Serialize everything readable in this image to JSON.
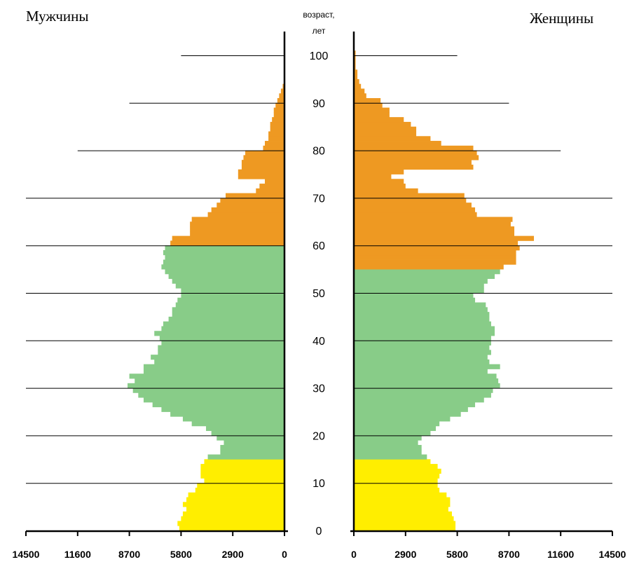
{
  "chart_data": {
    "type": "bar",
    "titles": {
      "male": "Мужчины",
      "female": "Женщины"
    },
    "axis_title_line1": "возраст,",
    "axis_title_line2": "лет",
    "x_ticks_male": [
      "14500",
      "11600",
      "8700",
      "5800",
      "2900",
      "0"
    ],
    "x_ticks_female": [
      "0",
      "2900",
      "5800",
      "8700",
      "11600",
      "14500"
    ],
    "xlim": [
      0,
      14500
    ],
    "ylim": [
      0,
      101
    ],
    "age_ticks": [
      "0",
      "10",
      "20",
      "30",
      "40",
      "50",
      "60",
      "70",
      "80",
      "90",
      "100"
    ],
    "age_groups": [
      {
        "name": "0-14",
        "ages": [
          0,
          14
        ],
        "color": "#FFEE00"
      },
      {
        "name": "15-59 (male) / 15-54 (female)",
        "color": "#88CC88"
      },
      {
        "name": "60+ (male) / 55+ (female)",
        "color": "#EE9922"
      }
    ],
    "ages": [
      0,
      1,
      2,
      3,
      4,
      5,
      6,
      7,
      8,
      9,
      10,
      11,
      12,
      13,
      14,
      15,
      16,
      17,
      18,
      19,
      20,
      21,
      22,
      23,
      24,
      25,
      26,
      27,
      28,
      29,
      30,
      31,
      32,
      33,
      34,
      35,
      36,
      37,
      38,
      39,
      40,
      41,
      42,
      43,
      44,
      45,
      46,
      47,
      48,
      49,
      50,
      51,
      52,
      53,
      54,
      55,
      56,
      57,
      58,
      59,
      60,
      61,
      62,
      63,
      64,
      65,
      66,
      67,
      68,
      69,
      70,
      71,
      72,
      73,
      74,
      75,
      76,
      77,
      78,
      79,
      80,
      81,
      82,
      83,
      84,
      85,
      86,
      87,
      88,
      89,
      90,
      91,
      92,
      93,
      94,
      95,
      96,
      97,
      98,
      99,
      100
    ],
    "series": [
      {
        "name": "Мужчины",
        "values": [
          5900,
          6000,
          5800,
          5700,
          5500,
          5700,
          5500,
          5400,
          5000,
          4900,
          4500,
          4700,
          4700,
          4700,
          4500,
          4300,
          3600,
          3600,
          3400,
          3800,
          4100,
          4400,
          5200,
          5700,
          6400,
          6900,
          7400,
          7900,
          8200,
          8500,
          8800,
          8400,
          8700,
          7900,
          7900,
          7300,
          7500,
          7100,
          7100,
          6900,
          7000,
          7300,
          6900,
          6800,
          6500,
          6300,
          6300,
          6100,
          6000,
          5800,
          5800,
          6100,
          6300,
          6500,
          6700,
          6900,
          6800,
          6700,
          6800,
          6700,
          6400,
          6300,
          5300,
          5300,
          5300,
          5200,
          4300,
          4100,
          3800,
          3600,
          3300,
          1600,
          1400,
          1100,
          2600,
          2600,
          2400,
          2400,
          2300,
          2200,
          1200,
          1100,
          900,
          900,
          800,
          800,
          700,
          600,
          600,
          500,
          400,
          300,
          200,
          100,
          0,
          0,
          0,
          0,
          0,
          0,
          0
        ],
        "color_by_age_group": true
      },
      {
        "name": "Женщины",
        "values": [
          5700,
          5700,
          5600,
          5500,
          5300,
          5400,
          5400,
          5200,
          4800,
          4700,
          4700,
          4800,
          4900,
          4700,
          4300,
          4100,
          3800,
          3800,
          3600,
          3800,
          4300,
          4600,
          4800,
          5400,
          6000,
          6400,
          6800,
          7300,
          7700,
          7800,
          8200,
          8100,
          8000,
          7500,
          8200,
          7600,
          7500,
          7700,
          7600,
          7700,
          7700,
          7900,
          7900,
          7700,
          7600,
          7600,
          7500,
          7400,
          6800,
          6700,
          7300,
          7300,
          7500,
          7900,
          8200,
          8400,
          9100,
          9100,
          9100,
          9300,
          9200,
          10100,
          9000,
          9000,
          8800,
          8900,
          6900,
          6800,
          6600,
          6300,
          6200,
          3600,
          2900,
          2800,
          2100,
          2800,
          6700,
          6600,
          7000,
          6900,
          6700,
          4900,
          4300,
          3500,
          3500,
          3200,
          2800,
          2000,
          2000,
          1600,
          1500,
          700,
          600,
          400,
          300,
          200,
          200,
          100,
          100,
          100,
          100
        ],
        "color_by_age_group": true
      }
    ],
    "grid": "horizontal lines every 10 years",
    "reference_lines": [
      {
        "age": 100,
        "male": 5800,
        "female": 5800
      },
      {
        "age": 90,
        "male": 8700,
        "female": 8700
      },
      {
        "age": 80,
        "male": 11600,
        "female": 11600
      },
      {
        "age": 70,
        "male": 14500,
        "female": 14500
      },
      {
        "age": 60,
        "male": 14500,
        "female": 14500
      },
      {
        "age": 50,
        "male": 14500,
        "female": 14500
      },
      {
        "age": 40,
        "male": 14500,
        "female": 14500
      },
      {
        "age": 30,
        "male": 14500,
        "female": 14500
      },
      {
        "age": 20,
        "male": 14500,
        "female": 14500
      },
      {
        "age": 10,
        "male": 14500,
        "female": 14500
      }
    ]
  }
}
